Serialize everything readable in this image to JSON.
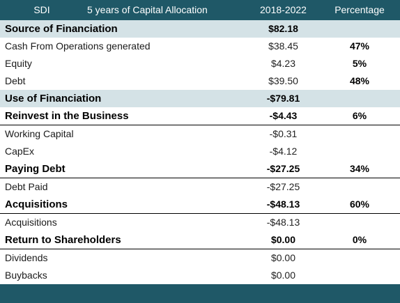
{
  "header": {
    "ticker": "SDI",
    "title": "5 years of Capital Allocation",
    "period": "2018-2022",
    "percentage": "Percentage"
  },
  "rows": [
    {
      "label": "Source of Financiation",
      "value": "$82.18",
      "pct": ""
    },
    {
      "label": "Cash From Operations generated",
      "value": "$38.45",
      "pct": "47%"
    },
    {
      "label": "Equity",
      "value": "$4.23",
      "pct": "5%"
    },
    {
      "label": "Debt",
      "value": "$39.50",
      "pct": "48%"
    },
    {
      "label": "Use of Financiation",
      "value": "-$79.81",
      "pct": ""
    },
    {
      "label": "Reinvest in the Business",
      "value": "-$4.43",
      "pct": "6%"
    },
    {
      "label": "Working Capital",
      "value": "-$0.31",
      "pct": ""
    },
    {
      "label": "CapEx",
      "value": "-$4.12",
      "pct": ""
    },
    {
      "label": "Paying Debt",
      "value": "-$27.25",
      "pct": "34%"
    },
    {
      "label": "Debt Paid",
      "value": "-$27.25",
      "pct": ""
    },
    {
      "label": "Acquisitions",
      "value": "-$48.13",
      "pct": "60%"
    },
    {
      "label": "Acquisitions",
      "value": "-$48.13",
      "pct": ""
    },
    {
      "label": "Return to Shareholders",
      "value": "$0.00",
      "pct": "0%"
    },
    {
      "label": "Dividends",
      "value": "$0.00",
      "pct": ""
    },
    {
      "label": "Buybacks",
      "value": "$0.00",
      "pct": ""
    }
  ],
  "colors": {
    "header_bg": "#1f5867",
    "band_bg": "#d4e2e6"
  }
}
